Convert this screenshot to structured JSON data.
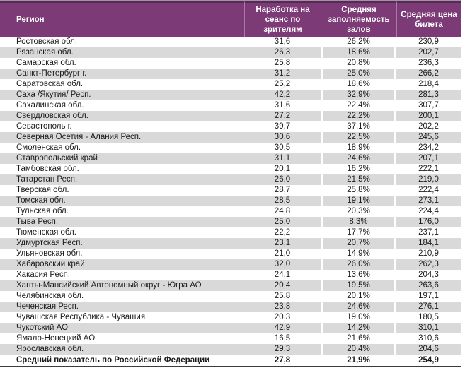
{
  "table": {
    "header": {
      "region": "Регион",
      "per_session": "Наработка на сеанс по зрителям",
      "occupancy": "Средняя заполняемость залов",
      "ticket_price": "Средняя цена билета"
    },
    "rows": [
      {
        "region": "Ростовская обл.",
        "per_session": "31,6",
        "occupancy": "26,2%",
        "ticket_price": "230,9"
      },
      {
        "region": "Рязанская обл.",
        "per_session": "26,3",
        "occupancy": "18,6%",
        "ticket_price": "202,7"
      },
      {
        "region": "Самарская обл.",
        "per_session": "25,8",
        "occupancy": "20,8%",
        "ticket_price": "236,3"
      },
      {
        "region": "Санкт-Петербург г.",
        "per_session": "31,2",
        "occupancy": "25,0%",
        "ticket_price": "266,2"
      },
      {
        "region": "Саратовская обл.",
        "per_session": "25,2",
        "occupancy": "18,6%",
        "ticket_price": "218,4"
      },
      {
        "region": "Саха /Якутия/ Респ.",
        "per_session": "42,2",
        "occupancy": "32,9%",
        "ticket_price": "281,3"
      },
      {
        "region": "Сахалинская обл.",
        "per_session": "31,6",
        "occupancy": "22,4%",
        "ticket_price": "307,7"
      },
      {
        "region": "Свердловская обл.",
        "per_session": "27,2",
        "occupancy": "22,2%",
        "ticket_price": "200,1"
      },
      {
        "region": "Севастополь г.",
        "per_session": "39,7",
        "occupancy": "37,1%",
        "ticket_price": "202,2"
      },
      {
        "region": "Северная Осетия - Алания Респ.",
        "per_session": "30,6",
        "occupancy": "22,5%",
        "ticket_price": "245,6"
      },
      {
        "region": "Смоленская обл.",
        "per_session": "30,5",
        "occupancy": "18,9%",
        "ticket_price": "234,2"
      },
      {
        "region": "Ставропольский край",
        "per_session": "31,1",
        "occupancy": "24,6%",
        "ticket_price": "207,1"
      },
      {
        "region": "Тамбовская обл.",
        "per_session": "20,1",
        "occupancy": "16,2%",
        "ticket_price": "222,1"
      },
      {
        "region": "Татарстан Респ.",
        "per_session": "26,0",
        "occupancy": "21,5%",
        "ticket_price": "219,0"
      },
      {
        "region": "Тверская обл.",
        "per_session": "28,7",
        "occupancy": "25,8%",
        "ticket_price": "222,4"
      },
      {
        "region": "Томская обл.",
        "per_session": "28,5",
        "occupancy": "19,1%",
        "ticket_price": "273,1"
      },
      {
        "region": "Тульская обл.",
        "per_session": "24,8",
        "occupancy": "20,3%",
        "ticket_price": "224,4"
      },
      {
        "region": "Тыва Респ.",
        "per_session": "25,0",
        "occupancy": "8,3%",
        "ticket_price": "176,0"
      },
      {
        "region": "Тюменская обл.",
        "per_session": "22,2",
        "occupancy": "17,7%",
        "ticket_price": "237,1"
      },
      {
        "region": "Удмуртская Респ.",
        "per_session": "23,1",
        "occupancy": "20,7%",
        "ticket_price": "184,1"
      },
      {
        "region": "Ульяновская обл.",
        "per_session": "21,0",
        "occupancy": "14,9%",
        "ticket_price": "210,9"
      },
      {
        "region": "Хабаровский край",
        "per_session": "32,0",
        "occupancy": "26,0%",
        "ticket_price": "262,3"
      },
      {
        "region": "Хакасия Респ.",
        "per_session": "24,1",
        "occupancy": "13,6%",
        "ticket_price": "204,3"
      },
      {
        "region": "Ханты-Мансийский Автономный округ - Югра АО",
        "per_session": "20,4",
        "occupancy": "19,5%",
        "ticket_price": "263,6"
      },
      {
        "region": "Челябинская обл.",
        "per_session": "25,8",
        "occupancy": "20,1%",
        "ticket_price": "197,1"
      },
      {
        "region": "Чеченская Респ.",
        "per_session": "23,8",
        "occupancy": "24,6%",
        "ticket_price": "276,1"
      },
      {
        "region": "Чувашская Республика - Чувашия",
        "per_session": "20,3",
        "occupancy": "19,0%",
        "ticket_price": "180,5"
      },
      {
        "region": "Чукотский АО",
        "per_session": "42,9",
        "occupancy": "14,2%",
        "ticket_price": "310,1"
      },
      {
        "region": "Ямало-Ненецкий АО",
        "per_session": "16,5",
        "occupancy": "21,6%",
        "ticket_price": "310,6"
      },
      {
        "region": "Ярославская обл.",
        "per_session": "29,3",
        "occupancy": "20,4%",
        "ticket_price": "204,6"
      }
    ],
    "total": {
      "region": "Средний показатель по Российской Федерации",
      "per_session": "27,8",
      "occupancy": "21,9%",
      "ticket_price": "254,9"
    },
    "colors": {
      "header_bg": "#7c3a76",
      "header_text": "#ffffff",
      "header_border_top": "#572a55",
      "header_separator": "#a87ba6",
      "top_hairline": "#a392a3",
      "stripe": "#d9d9d9",
      "total_border": "#3c3c3c",
      "text": "#1b1b1b"
    }
  }
}
